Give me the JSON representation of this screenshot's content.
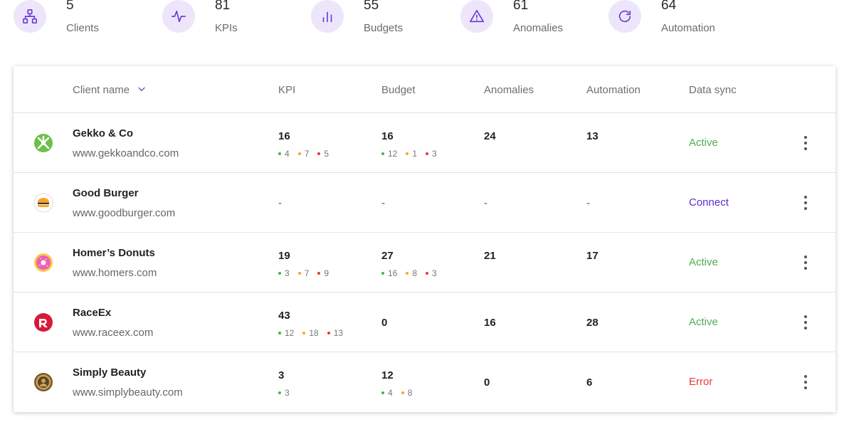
{
  "stats": [
    {
      "value": "5",
      "label": "Clients",
      "icon": "sitemap-icon"
    },
    {
      "value": "81",
      "label": "KPIs",
      "icon": "pulse-icon"
    },
    {
      "value": "55",
      "label": "Budgets",
      "icon": "bar-chart-icon"
    },
    {
      "value": "61",
      "label": "Anomalies",
      "icon": "warning-icon"
    },
    {
      "value": "64",
      "label": "Automation",
      "icon": "refresh-icon"
    }
  ],
  "table": {
    "headers": {
      "client_name": "Client name",
      "kpi": "KPI",
      "budget": "Budget",
      "anomalies": "Anomalies",
      "automation": "Automation",
      "data_sync": "Data sync"
    },
    "rows": [
      {
        "name": "Gekko & Co",
        "url": "www.gekkoandco.com",
        "logo": "gekko-logo-icon",
        "kpi": {
          "total": "16",
          "green": "4",
          "orange": "7",
          "red": "5"
        },
        "budget": {
          "total": "16",
          "green": "12",
          "orange": "1",
          "red": "3"
        },
        "anomalies": "24",
        "automation": "13",
        "sync": "Active",
        "sync_color": "#4caf50"
      },
      {
        "name": "Good Burger",
        "url": "www.goodburger.com",
        "logo": "burger-logo-icon",
        "kpi": {
          "total": "-"
        },
        "budget": {
          "total": "-"
        },
        "anomalies": "-",
        "automation": "-",
        "sync": "Connect",
        "sync_color": "#5b2bd0"
      },
      {
        "name": "Homer’s Donuts",
        "url": "www.homers.com",
        "logo": "donut-logo-icon",
        "kpi": {
          "total": "19",
          "green": "3",
          "orange": "7",
          "red": "9"
        },
        "budget": {
          "total": "27",
          "green": "16",
          "orange": "8",
          "red": "3"
        },
        "anomalies": "21",
        "automation": "17",
        "sync": "Active",
        "sync_color": "#4caf50"
      },
      {
        "name": "RaceEx",
        "url": "www.raceex.com",
        "logo": "raceex-logo-icon",
        "kpi": {
          "total": "43",
          "green": "12",
          "orange": "18",
          "red": "13"
        },
        "budget": {
          "total": "0"
        },
        "anomalies": "16",
        "automation": "28",
        "sync": "Active",
        "sync_color": "#4caf50"
      },
      {
        "name": "Simply Beauty",
        "url": "www.simplybeauty.com",
        "logo": "beauty-logo-icon",
        "kpi": {
          "total": "3",
          "green": "3"
        },
        "budget": {
          "total": "12",
          "green": "4",
          "orange": "8"
        },
        "anomalies": "0",
        "automation": "6",
        "sync": "Error",
        "sync_color": "#e53935"
      }
    ]
  }
}
